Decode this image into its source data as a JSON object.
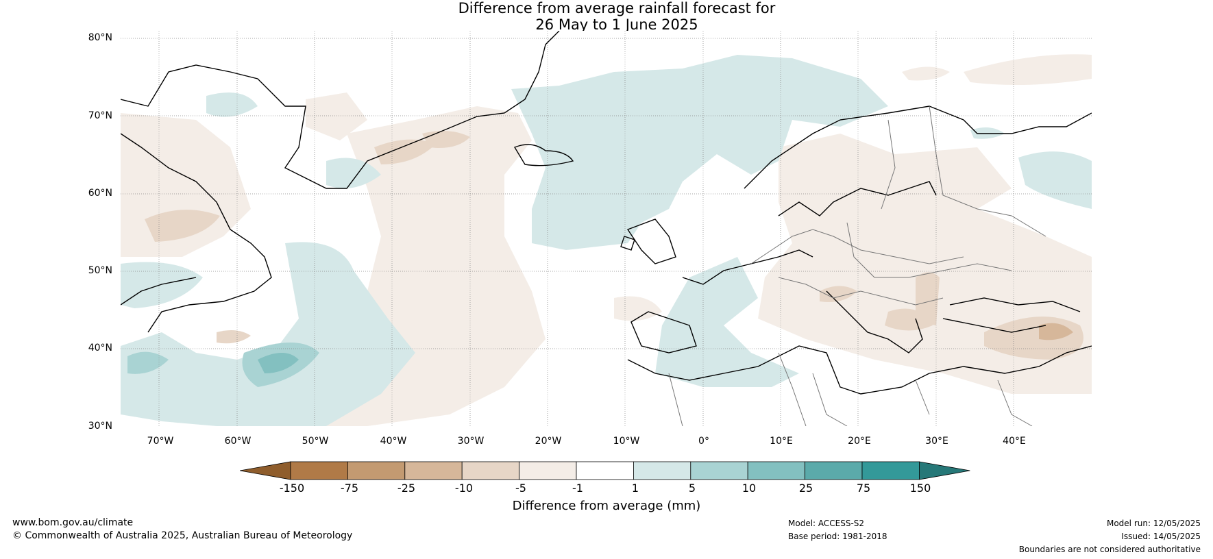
{
  "title": {
    "line1": "Difference from average rainfall forecast for",
    "line2": "26 May to 1 June 2025"
  },
  "map": {
    "lat_labels": [
      "80°N",
      "70°N",
      "60°N",
      "50°N",
      "40°N",
      "30°N"
    ],
    "lon_labels": [
      "70°W",
      "60°W",
      "50°W",
      "40°W",
      "30°W",
      "20°W",
      "10°W",
      "0°",
      "10°E",
      "20°E",
      "30°E",
      "40°E"
    ],
    "lat_range": [
      30,
      80
    ],
    "lon_range": [
      -75,
      50
    ],
    "gridlines": true
  },
  "colorbar": {
    "title": "Difference from average (mm)",
    "ticks": [
      "-150",
      "-75",
      "-25",
      "-10",
      "-5",
      "-1",
      "1",
      "5",
      "10",
      "25",
      "75",
      "150"
    ],
    "colors": [
      "#8f5d2c",
      "#b07a47",
      "#c39a71",
      "#d6b79a",
      "#e7d6c7",
      "#f4ede7",
      "#ffffff",
      "#d5e8e8",
      "#a9d3d3",
      "#83c0c0",
      "#5baaaa",
      "#339999",
      "#267878"
    ]
  },
  "footer": {
    "url": "www.bom.gov.au/climate",
    "copyright": "© Commonwealth of Australia 2025, Australian Bureau of Meteorology",
    "model": "Model: ACCESS-S2",
    "base_period": "Base period: 1981-2018",
    "model_run": "Model run: 12/05/2025",
    "issued": "Issued: 14/05/2025",
    "disclaimer": "Boundaries are not considered authoritative"
  }
}
